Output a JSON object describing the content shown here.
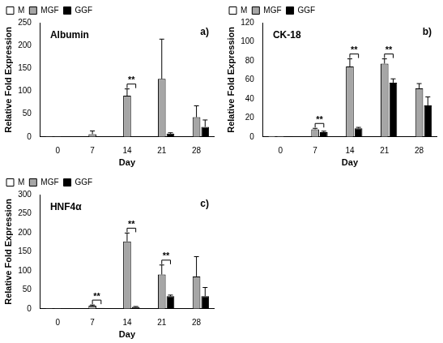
{
  "chart_data": [
    {
      "type": "bar",
      "title": "Albumin",
      "x_label": "Day",
      "y_label": "Relative Fold Expression",
      "categories": [
        "0",
        "7",
        "14",
        "21",
        "28"
      ],
      "series": [
        {
          "name": "M",
          "color": "#ffffff",
          "values": [
            1,
            null,
            null,
            null,
            null
          ],
          "errors": [
            null,
            null,
            null,
            null,
            null
          ]
        },
        {
          "name": "MGF",
          "color": "#a6a6a6",
          "values": [
            1,
            6,
            90,
            127,
            43
          ],
          "errors": [
            null,
            7,
            15,
            87,
            25
          ]
        },
        {
          "name": "GGF",
          "color": "#000000",
          "values": [
            1,
            0.5,
            1,
            7,
            22
          ],
          "errors": [
            null,
            null,
            null,
            2,
            15
          ]
        }
      ],
      "ylim": [
        0,
        250
      ],
      "yticks": [
        0,
        50,
        100,
        150,
        200,
        250
      ],
      "grid": false,
      "legend": "upper left",
      "annotations": [
        {
          "text": "a)"
        },
        {
          "text": "**",
          "category": "14",
          "between": [
            "MGF",
            "GGF"
          ]
        }
      ]
    },
    {
      "type": "bar",
      "title": "CK-18",
      "x_label": "Day",
      "y_label": "Relative Fold Expression",
      "categories": [
        "0",
        "7",
        "14",
        "21",
        "28"
      ],
      "series": [
        {
          "name": "M",
          "color": "#ffffff",
          "values": [
            1,
            null,
            null,
            null,
            null
          ],
          "errors": [
            null,
            null,
            null,
            null,
            null
          ]
        },
        {
          "name": "MGF",
          "color": "#a6a6a6",
          "values": [
            1,
            8,
            74,
            77,
            51
          ],
          "errors": [
            null,
            1,
            8,
            5,
            5
          ]
        },
        {
          "name": "GGF",
          "color": "#000000",
          "values": [
            1,
            5,
            9,
            57,
            33
          ],
          "errors": [
            null,
            1,
            1,
            4,
            9
          ]
        }
      ],
      "ylim": [
        0,
        120
      ],
      "yticks": [
        0,
        20,
        40,
        60,
        80,
        100,
        120
      ],
      "grid": false,
      "legend": "upper left",
      "annotations": [
        {
          "text": "b)"
        },
        {
          "text": "**",
          "category": "7",
          "between": [
            "MGF",
            "GGF"
          ]
        },
        {
          "text": "**",
          "category": "14",
          "between": [
            "MGF",
            "GGF"
          ]
        },
        {
          "text": "**",
          "category": "21",
          "between": [
            "MGF",
            "GGF"
          ]
        }
      ]
    },
    {
      "type": "bar",
      "title": "HNF4α",
      "x_label": "Day",
      "y_label": "Relative Fold Expression",
      "categories": [
        "0",
        "7",
        "14",
        "21",
        "28"
      ],
      "series": [
        {
          "name": "M",
          "color": "#ffffff",
          "values": [
            1,
            null,
            null,
            null,
            null
          ],
          "errors": [
            null,
            null,
            null,
            null,
            null
          ]
        },
        {
          "name": "MGF",
          "color": "#a6a6a6",
          "values": [
            1,
            8,
            177,
            90,
            85
          ],
          "errors": [
            null,
            2,
            22,
            25,
            52
          ]
        },
        {
          "name": "GGF",
          "color": "#000000",
          "values": [
            1,
            2,
            5,
            33,
            33
          ],
          "errors": [
            null,
            null,
            1,
            3,
            23
          ]
        }
      ],
      "ylim": [
        0,
        300
      ],
      "yticks": [
        0,
        50,
        100,
        150,
        200,
        250,
        300
      ],
      "grid": false,
      "legend": "upper left",
      "annotations": [
        {
          "text": "c)"
        },
        {
          "text": "**",
          "category": "7",
          "between": [
            "MGF",
            "GGF"
          ]
        },
        {
          "text": "**",
          "category": "14",
          "between": [
            "MGF",
            "GGF"
          ]
        },
        {
          "text": "**",
          "category": "21",
          "between": [
            "MGF",
            "GGF"
          ]
        }
      ]
    }
  ]
}
